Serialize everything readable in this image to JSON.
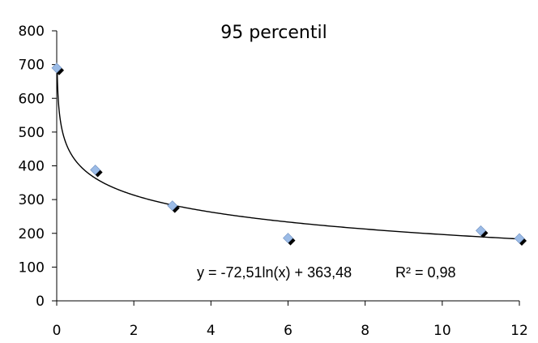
{
  "chart_data": {
    "type": "scatter",
    "title": "95 percentil",
    "xlabel": "",
    "ylabel": "",
    "xlim": [
      0,
      12
    ],
    "ylim": [
      0,
      800
    ],
    "x_ticks": [
      0,
      2,
      4,
      6,
      8,
      10,
      12
    ],
    "y_ticks": [
      0,
      100,
      200,
      300,
      400,
      500,
      600,
      700,
      800
    ],
    "x_tick_labels": [
      "0",
      "2",
      "4",
      "6",
      "8",
      "10",
      "12"
    ],
    "y_tick_labels": [
      "0",
      "100",
      "200",
      "300",
      "400",
      "500",
      "600",
      "700",
      "800"
    ],
    "grid": false,
    "legend": "none",
    "series": [
      {
        "x": [
          0,
          1,
          3,
          6,
          11,
          12
        ],
        "y": [
          690,
          388,
          282,
          186,
          208,
          185
        ],
        "marker": "diamond",
        "color": "#9bbbe6"
      }
    ],
    "trendline": {
      "type": "log",
      "a": -72.51,
      "b": 363.48,
      "color": "#000000"
    },
    "equation_label": "y = -72,51ln(x) + 363,48",
    "r2_label": "R² = 0,98"
  }
}
